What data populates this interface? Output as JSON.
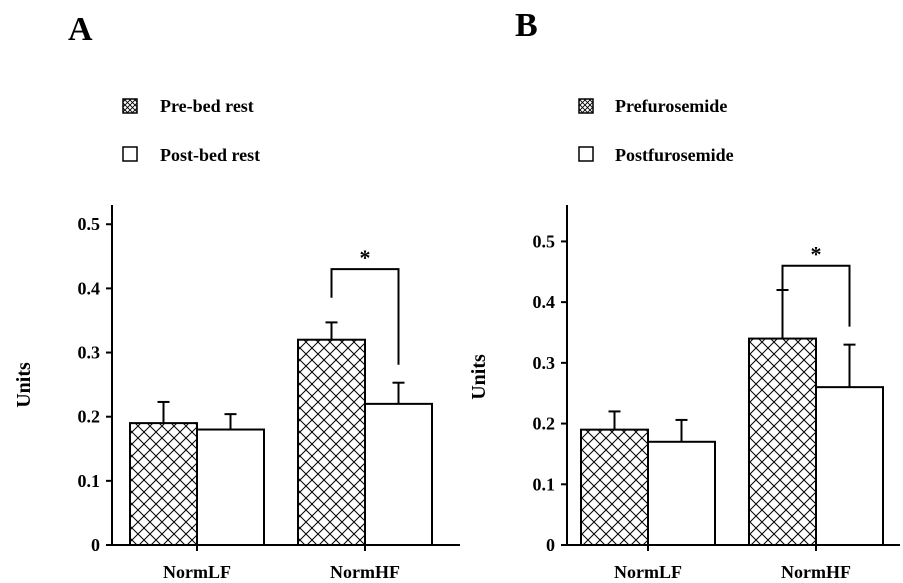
{
  "chart_data": [
    {
      "type": "bar",
      "panel": "A",
      "categories": [
        "NormLF",
        "NormHF"
      ],
      "series": [
        {
          "name": "Pre-bed rest",
          "pattern": "crosshatch",
          "values": [
            0.19,
            0.32
          ],
          "errors": [
            0.033,
            0.027
          ]
        },
        {
          "name": "Post-bed rest",
          "pattern": "open",
          "values": [
            0.18,
            0.22
          ],
          "errors": [
            0.024,
            0.033
          ]
        }
      ],
      "ylabel": "Units",
      "ylim": [
        0,
        0.53
      ],
      "yticks": [
        "0",
        "0.1",
        "0.2",
        "0.3",
        "0.4",
        "0.5"
      ],
      "ytick_values": [
        0,
        0.1,
        0.2,
        0.3,
        0.4,
        0.5
      ],
      "legend": "top-left",
      "grid": false,
      "significance": {
        "category": "NormHF",
        "label": "*",
        "level": 0.43
      }
    },
    {
      "type": "bar",
      "panel": "B",
      "categories": [
        "NormLF",
        "NormHF"
      ],
      "series": [
        {
          "name": "Prefurosemide",
          "pattern": "crosshatch",
          "values": [
            0.19,
            0.34
          ],
          "errors": [
            0.03,
            0.08
          ]
        },
        {
          "name": "Postfurosemide",
          "pattern": "open",
          "values": [
            0.17,
            0.26
          ],
          "errors": [
            0.036,
            0.07
          ]
        }
      ],
      "ylabel": "Units",
      "ylim": [
        0,
        0.56
      ],
      "yticks": [
        "0",
        "0.1",
        "0.2",
        "0.3",
        "0.4",
        "0.5"
      ],
      "ytick_values": [
        0,
        0.1,
        0.2,
        0.3,
        0.4,
        0.5
      ],
      "legend": "top-left",
      "grid": false,
      "significance": {
        "category": "NormHF",
        "label": "*",
        "level": 0.46
      }
    }
  ]
}
